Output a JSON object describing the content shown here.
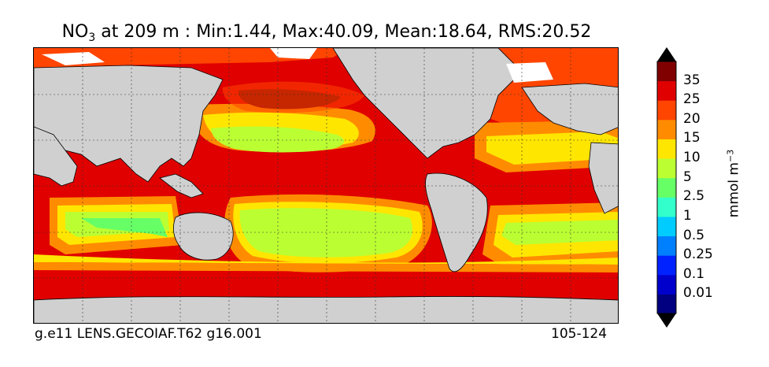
{
  "title": {
    "variable": "NO",
    "subscript": "3",
    "text": " at 209 m : Min:1.44, Max:40.09, Mean:18.64, RMS:20.52"
  },
  "footer": {
    "left": "g.e11 LENS.GECOIAF.T62 g16.001",
    "right": "105-124"
  },
  "colorbar": {
    "units": "mmol m",
    "units_exponent": "−3",
    "levels": [
      "35",
      "25",
      "20",
      "15",
      "10",
      "5",
      "2.5",
      "1",
      "0.5",
      "0.25",
      "0.1",
      "0.01"
    ],
    "colors": [
      "#000080",
      "#0000cd",
      "#0022ff",
      "#0080ff",
      "#00ccff",
      "#33ffcc",
      "#66ff66",
      "#bbff33",
      "#ffe600",
      "#ff8c00",
      "#ff4500",
      "#e00000",
      "#800000"
    ],
    "colors_order": "bottom-to-top",
    "land_color": "#d0d0d0",
    "missing_color": "#ffffff"
  },
  "map": {
    "region": "global ocean",
    "grid": "dashed graticule"
  }
}
